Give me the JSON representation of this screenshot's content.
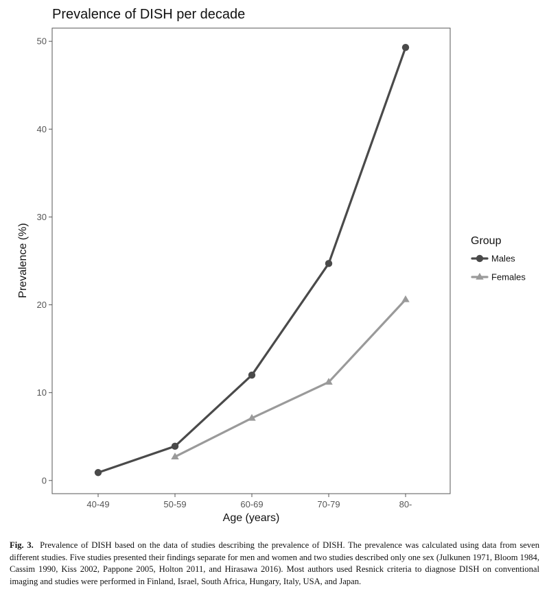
{
  "chart_data": {
    "type": "line",
    "title": "Prevalence of DISH per decade",
    "xlabel": "Age (years)",
    "ylabel": "Prevalence (%)",
    "categories": [
      "40-49",
      "50-59",
      "60-69",
      "70-79",
      "80-"
    ],
    "ylim": [
      -1.5,
      51.5
    ],
    "yticks": [
      0,
      10,
      20,
      30,
      40,
      50
    ],
    "grid": false,
    "legend": {
      "title": "Group",
      "position": "right"
    },
    "series": [
      {
        "name": "Males",
        "marker": "circle",
        "color": "#4a4a4a",
        "values": [
          0.9,
          3.9,
          12.0,
          24.7,
          49.3
        ]
      },
      {
        "name": "Females",
        "marker": "triangle",
        "color": "#9a9a9a",
        "values": [
          null,
          2.7,
          7.1,
          11.2,
          20.6
        ]
      }
    ]
  },
  "caption": {
    "label": "Fig. 3.",
    "text": "Prevalence of DISH based on the data of studies describing the prevalence of DISH. The prevalence was calculated using data from seven different studies. Five studies presented their findings separate for men and women and two studies described only one sex (Julkunen 1971, Bloom 1984, Cassim 1990, Kiss 2002, Pappone 2005, Holton 2011, and Hirasawa 2016). Most authors used Resnick criteria to diagnose DISH on conventional imaging and studies were performed in Finland, Israel, South Africa, Hungary, Italy, USA, and Japan."
  }
}
